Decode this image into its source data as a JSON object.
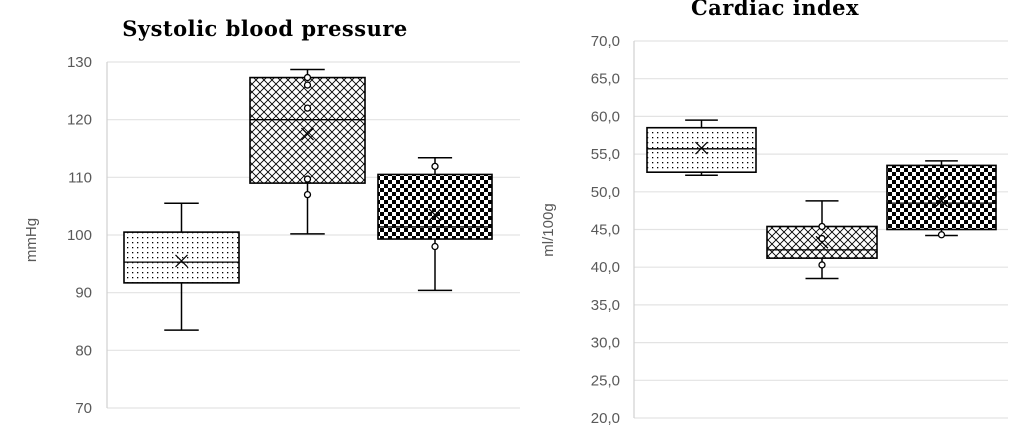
{
  "chart_data": [
    {
      "type": "box",
      "title": "Systolic blood pressure",
      "ylabel": "mmHg",
      "ylim": [
        70,
        130
      ],
      "yticks": [
        "70",
        "80",
        "90",
        "100",
        "110",
        "120",
        "130"
      ],
      "grid": true,
      "boxes": [
        {
          "pattern": "dots",
          "min": 83.5,
          "q1": 91.7,
          "median": 95.3,
          "q3": 100.5,
          "max": 105.5,
          "mean": 95.5,
          "points": []
        },
        {
          "pattern": "crosshatch",
          "min": 100.2,
          "q1": 109.0,
          "median": 120.0,
          "q3": 127.3,
          "max": 128.7,
          "mean": 117.5,
          "points": [
            127.3,
            126.0,
            122.0,
            109.7,
            107.0
          ]
        },
        {
          "pattern": "checker",
          "min": 90.4,
          "q1": 99.3,
          "median": 101.4,
          "q3": 110.5,
          "max": 113.4,
          "mean": 103.5,
          "points": [
            111.9,
            98.0
          ]
        }
      ]
    },
    {
      "type": "box",
      "title": "Cardiac index",
      "ylabel": "ml/100g",
      "ylim": [
        20,
        70
      ],
      "yticks": [
        "20,0",
        "25,0",
        "30,0",
        "35,0",
        "40,0",
        "45,0",
        "50,0",
        "55,0",
        "60,0",
        "65,0",
        "70,0"
      ],
      "grid": true,
      "boxes": [
        {
          "pattern": "dots",
          "min": 52.2,
          "q1": 52.6,
          "median": 55.7,
          "q3": 58.5,
          "max": 59.5,
          "mean": 55.8,
          "points": []
        },
        {
          "pattern": "crosshatch",
          "min": 38.5,
          "q1": 41.2,
          "median": 42.3,
          "q3": 45.4,
          "max": 48.8,
          "mean": 43.3,
          "points": [
            45.4,
            43.8,
            40.3
          ]
        },
        {
          "pattern": "checker",
          "min": 44.2,
          "q1": 45.0,
          "median": 48.5,
          "q3": 53.5,
          "max": 54.1,
          "mean": 48.8,
          "points": [
            44.3
          ]
        }
      ]
    }
  ]
}
